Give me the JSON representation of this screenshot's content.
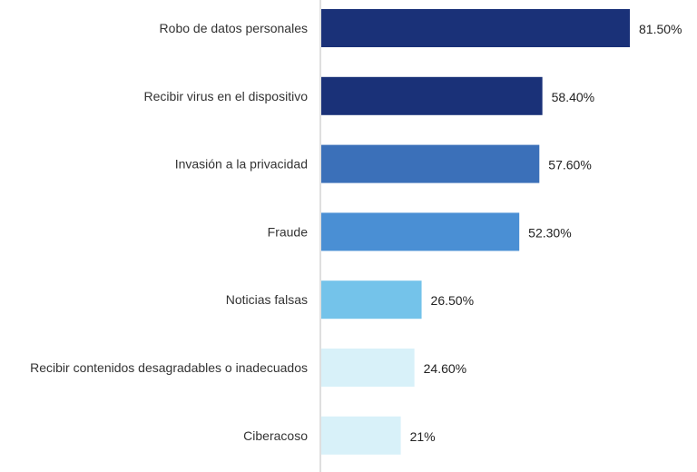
{
  "chart_data": {
    "type": "bar",
    "orientation": "horizontal",
    "title": "",
    "xlabel": "",
    "ylabel": "",
    "xlim": [
      0,
      100
    ],
    "grid": false,
    "legend": "none",
    "categories": [
      "Robo de datos personales",
      "Recibir virus en el dispositivo",
      "Invasión a la privacidad",
      "Fraude",
      "Noticias falsas",
      "Recibir contenidos desagradables o inadecuados",
      "Ciberacoso"
    ],
    "values": [
      81.5,
      58.4,
      57.6,
      52.3,
      26.5,
      24.6,
      21
    ],
    "data_labels": [
      "81.50%",
      "58.40%",
      "57.60%",
      "52.30%",
      "26.50%",
      "24.60%",
      "21%"
    ],
    "colors": [
      "#1a3178",
      "#1a3178",
      "#3b70b9",
      "#4a8fd4",
      "#74c3ea",
      "#d8f1f9",
      "#d8f1f9"
    ]
  }
}
